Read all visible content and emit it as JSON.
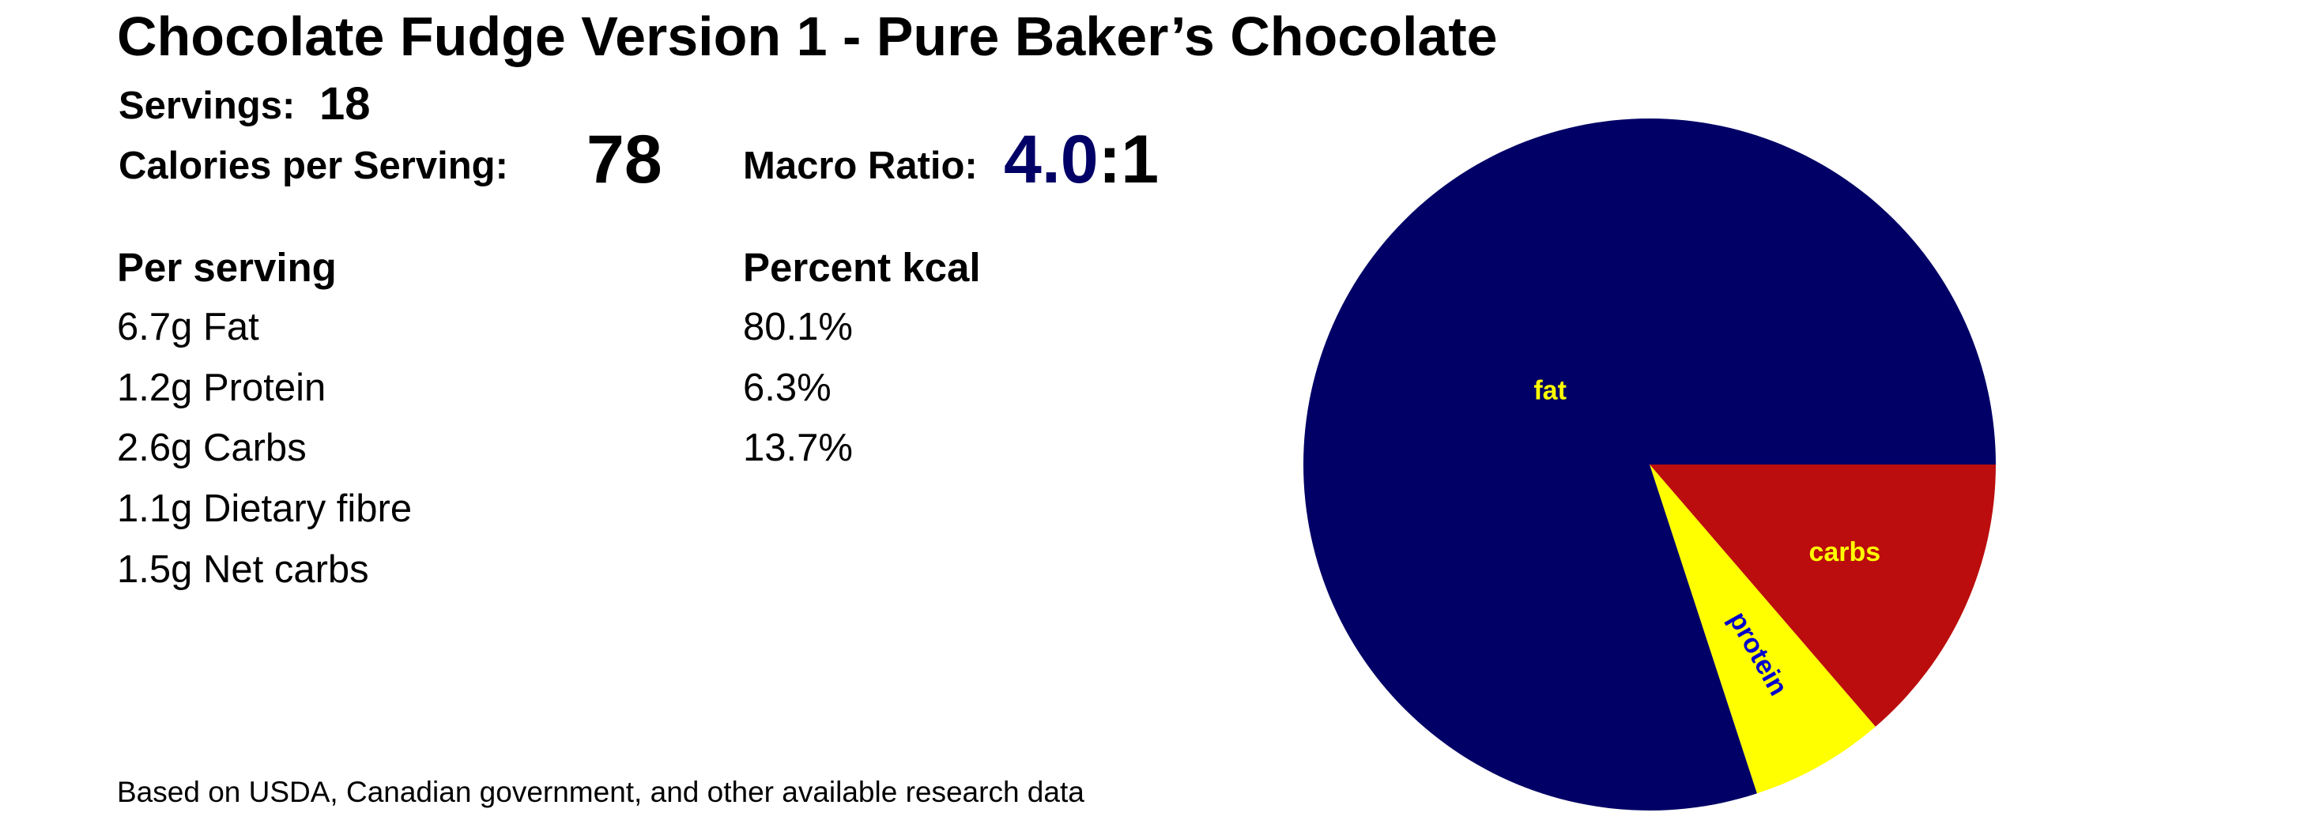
{
  "title": "Chocolate Fudge Version 1 - Pure Baker’s Chocolate",
  "servings": {
    "label": "Servings:",
    "value": "18"
  },
  "calories": {
    "label": "Calories per Serving:",
    "value": "78"
  },
  "macro_ratio": {
    "label": "Macro Ratio:",
    "ratio": "4.0",
    "suffix": ":1"
  },
  "per_serving": {
    "heading": "Per serving",
    "rows": [
      "6.7g Fat",
      "1.2g Protein",
      "2.6g Carbs",
      "1.1g Dietary fibre",
      "1.5g Net carbs"
    ]
  },
  "percent_kcal": {
    "heading": "Percent kcal",
    "rows": [
      "80.1%",
      "6.3%",
      "13.7%"
    ]
  },
  "footnote": "Based on USDA, Canadian government, and other available research data",
  "colors": {
    "fat": "#000066",
    "protein": "#FFFF00",
    "carbs": "#BB0D0D",
    "fat_label": "#FFFF00",
    "protein_label": "#0000CC",
    "carbs_label": "#FFFF00",
    "ratio_accent": "#000066"
  },
  "chart_data": {
    "type": "pie",
    "title": "",
    "slices": [
      {
        "label": "fat",
        "value": 80.1
      },
      {
        "label": "protein",
        "value": 6.3
      },
      {
        "label": "carbs",
        "value": 13.7
      }
    ],
    "start": "right (3 o'clock)",
    "direction": "clockwise order from the right: carbs, protein, fat"
  }
}
